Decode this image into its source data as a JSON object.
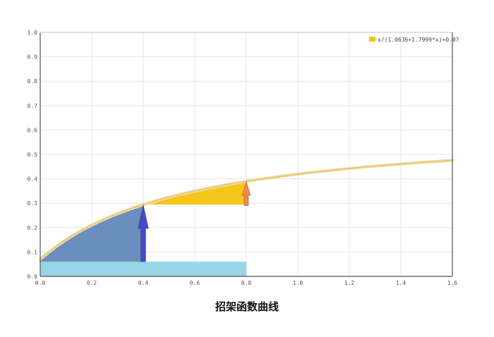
{
  "chart_data": {
    "type": "line",
    "title": "招架函数曲线",
    "xlabel": "",
    "ylabel": "",
    "xlim": [
      0,
      1.6
    ],
    "ylim": [
      0,
      1.0
    ],
    "x_ticks": [
      "0.0",
      "0.2",
      "0.4",
      "0.6",
      "0.8",
      "1.0",
      "1.2",
      "1.4",
      "1.6"
    ],
    "y_ticks": [
      "0.0",
      "0.1",
      "0.2",
      "0.3",
      "0.4",
      "0.5",
      "0.6",
      "0.7",
      "0.8",
      "0.9",
      "1.0"
    ],
    "grid": true,
    "legend_position": "top-right",
    "series": [
      {
        "name": "x/(1.0636+1.7999*x)+0.07",
        "function": {
          "a": 1.0636,
          "b": 1.7999,
          "c": 0.07
        },
        "x_range": [
          0,
          1.6
        ],
        "color": "#e8c878"
      }
    ],
    "regions": {
      "base_bar": {
        "x": [
          0,
          0.8
        ],
        "y": [
          0,
          0.06
        ],
        "color": "#96d6e8"
      },
      "blue_area": {
        "x": [
          0,
          0.4
        ],
        "color": "#6a8ebd"
      },
      "yellow_area": {
        "x": [
          0.4,
          0.8
        ],
        "color": "#f5c518"
      }
    },
    "arrows": [
      {
        "x": 0.4,
        "y_from": 0.06,
        "color": "#4848c8"
      },
      {
        "x": 0.8,
        "y_from": 0.29,
        "color": "#f08848"
      }
    ],
    "colors": {
      "grid": "#e4e4e4",
      "axis": "#555555",
      "legend_swatch": "#f5c518"
    }
  }
}
